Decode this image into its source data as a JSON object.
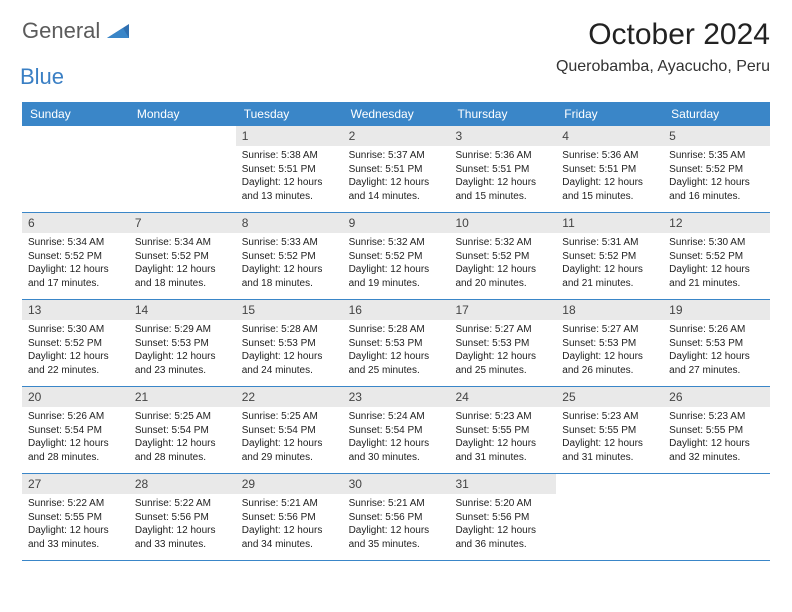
{
  "brand": {
    "part1": "General",
    "part2": "Blue"
  },
  "title": "October 2024",
  "location": "Querobamba, Ayacucho, Peru",
  "colors": {
    "header_bg": "#3a86c8",
    "header_text": "#ffffff",
    "daynum_bg": "#e9e9e9",
    "border": "#3a86c8",
    "logo_gray": "#5b5b5b",
    "logo_blue": "#3a7fc4",
    "body_text": "#222222",
    "background": "#ffffff"
  },
  "typography": {
    "title_size": 30,
    "location_size": 16,
    "head_size": 12,
    "daynum_size": 12,
    "body_size": 10
  },
  "layout": {
    "columns": 7,
    "rows": 5,
    "leading_blanks": 2
  },
  "day_names": [
    "Sunday",
    "Monday",
    "Tuesday",
    "Wednesday",
    "Thursday",
    "Friday",
    "Saturday"
  ],
  "days": [
    {
      "n": "1",
      "sr": "Sunrise: 5:38 AM",
      "ss": "Sunset: 5:51 PM",
      "dl": "Daylight: 12 hours and 13 minutes."
    },
    {
      "n": "2",
      "sr": "Sunrise: 5:37 AM",
      "ss": "Sunset: 5:51 PM",
      "dl": "Daylight: 12 hours and 14 minutes."
    },
    {
      "n": "3",
      "sr": "Sunrise: 5:36 AM",
      "ss": "Sunset: 5:51 PM",
      "dl": "Daylight: 12 hours and 15 minutes."
    },
    {
      "n": "4",
      "sr": "Sunrise: 5:36 AM",
      "ss": "Sunset: 5:51 PM",
      "dl": "Daylight: 12 hours and 15 minutes."
    },
    {
      "n": "5",
      "sr": "Sunrise: 5:35 AM",
      "ss": "Sunset: 5:52 PM",
      "dl": "Daylight: 12 hours and 16 minutes."
    },
    {
      "n": "6",
      "sr": "Sunrise: 5:34 AM",
      "ss": "Sunset: 5:52 PM",
      "dl": "Daylight: 12 hours and 17 minutes."
    },
    {
      "n": "7",
      "sr": "Sunrise: 5:34 AM",
      "ss": "Sunset: 5:52 PM",
      "dl": "Daylight: 12 hours and 18 minutes."
    },
    {
      "n": "8",
      "sr": "Sunrise: 5:33 AM",
      "ss": "Sunset: 5:52 PM",
      "dl": "Daylight: 12 hours and 18 minutes."
    },
    {
      "n": "9",
      "sr": "Sunrise: 5:32 AM",
      "ss": "Sunset: 5:52 PM",
      "dl": "Daylight: 12 hours and 19 minutes."
    },
    {
      "n": "10",
      "sr": "Sunrise: 5:32 AM",
      "ss": "Sunset: 5:52 PM",
      "dl": "Daylight: 12 hours and 20 minutes."
    },
    {
      "n": "11",
      "sr": "Sunrise: 5:31 AM",
      "ss": "Sunset: 5:52 PM",
      "dl": "Daylight: 12 hours and 21 minutes."
    },
    {
      "n": "12",
      "sr": "Sunrise: 5:30 AM",
      "ss": "Sunset: 5:52 PM",
      "dl": "Daylight: 12 hours and 21 minutes."
    },
    {
      "n": "13",
      "sr": "Sunrise: 5:30 AM",
      "ss": "Sunset: 5:52 PM",
      "dl": "Daylight: 12 hours and 22 minutes."
    },
    {
      "n": "14",
      "sr": "Sunrise: 5:29 AM",
      "ss": "Sunset: 5:53 PM",
      "dl": "Daylight: 12 hours and 23 minutes."
    },
    {
      "n": "15",
      "sr": "Sunrise: 5:28 AM",
      "ss": "Sunset: 5:53 PM",
      "dl": "Daylight: 12 hours and 24 minutes."
    },
    {
      "n": "16",
      "sr": "Sunrise: 5:28 AM",
      "ss": "Sunset: 5:53 PM",
      "dl": "Daylight: 12 hours and 25 minutes."
    },
    {
      "n": "17",
      "sr": "Sunrise: 5:27 AM",
      "ss": "Sunset: 5:53 PM",
      "dl": "Daylight: 12 hours and 25 minutes."
    },
    {
      "n": "18",
      "sr": "Sunrise: 5:27 AM",
      "ss": "Sunset: 5:53 PM",
      "dl": "Daylight: 12 hours and 26 minutes."
    },
    {
      "n": "19",
      "sr": "Sunrise: 5:26 AM",
      "ss": "Sunset: 5:53 PM",
      "dl": "Daylight: 12 hours and 27 minutes."
    },
    {
      "n": "20",
      "sr": "Sunrise: 5:26 AM",
      "ss": "Sunset: 5:54 PM",
      "dl": "Daylight: 12 hours and 28 minutes."
    },
    {
      "n": "21",
      "sr": "Sunrise: 5:25 AM",
      "ss": "Sunset: 5:54 PM",
      "dl": "Daylight: 12 hours and 28 minutes."
    },
    {
      "n": "22",
      "sr": "Sunrise: 5:25 AM",
      "ss": "Sunset: 5:54 PM",
      "dl": "Daylight: 12 hours and 29 minutes."
    },
    {
      "n": "23",
      "sr": "Sunrise: 5:24 AM",
      "ss": "Sunset: 5:54 PM",
      "dl": "Daylight: 12 hours and 30 minutes."
    },
    {
      "n": "24",
      "sr": "Sunrise: 5:23 AM",
      "ss": "Sunset: 5:55 PM",
      "dl": "Daylight: 12 hours and 31 minutes."
    },
    {
      "n": "25",
      "sr": "Sunrise: 5:23 AM",
      "ss": "Sunset: 5:55 PM",
      "dl": "Daylight: 12 hours and 31 minutes."
    },
    {
      "n": "26",
      "sr": "Sunrise: 5:23 AM",
      "ss": "Sunset: 5:55 PM",
      "dl": "Daylight: 12 hours and 32 minutes."
    },
    {
      "n": "27",
      "sr": "Sunrise: 5:22 AM",
      "ss": "Sunset: 5:55 PM",
      "dl": "Daylight: 12 hours and 33 minutes."
    },
    {
      "n": "28",
      "sr": "Sunrise: 5:22 AM",
      "ss": "Sunset: 5:56 PM",
      "dl": "Daylight: 12 hours and 33 minutes."
    },
    {
      "n": "29",
      "sr": "Sunrise: 5:21 AM",
      "ss": "Sunset: 5:56 PM",
      "dl": "Daylight: 12 hours and 34 minutes."
    },
    {
      "n": "30",
      "sr": "Sunrise: 5:21 AM",
      "ss": "Sunset: 5:56 PM",
      "dl": "Daylight: 12 hours and 35 minutes."
    },
    {
      "n": "31",
      "sr": "Sunrise: 5:20 AM",
      "ss": "Sunset: 5:56 PM",
      "dl": "Daylight: 12 hours and 36 minutes."
    }
  ]
}
